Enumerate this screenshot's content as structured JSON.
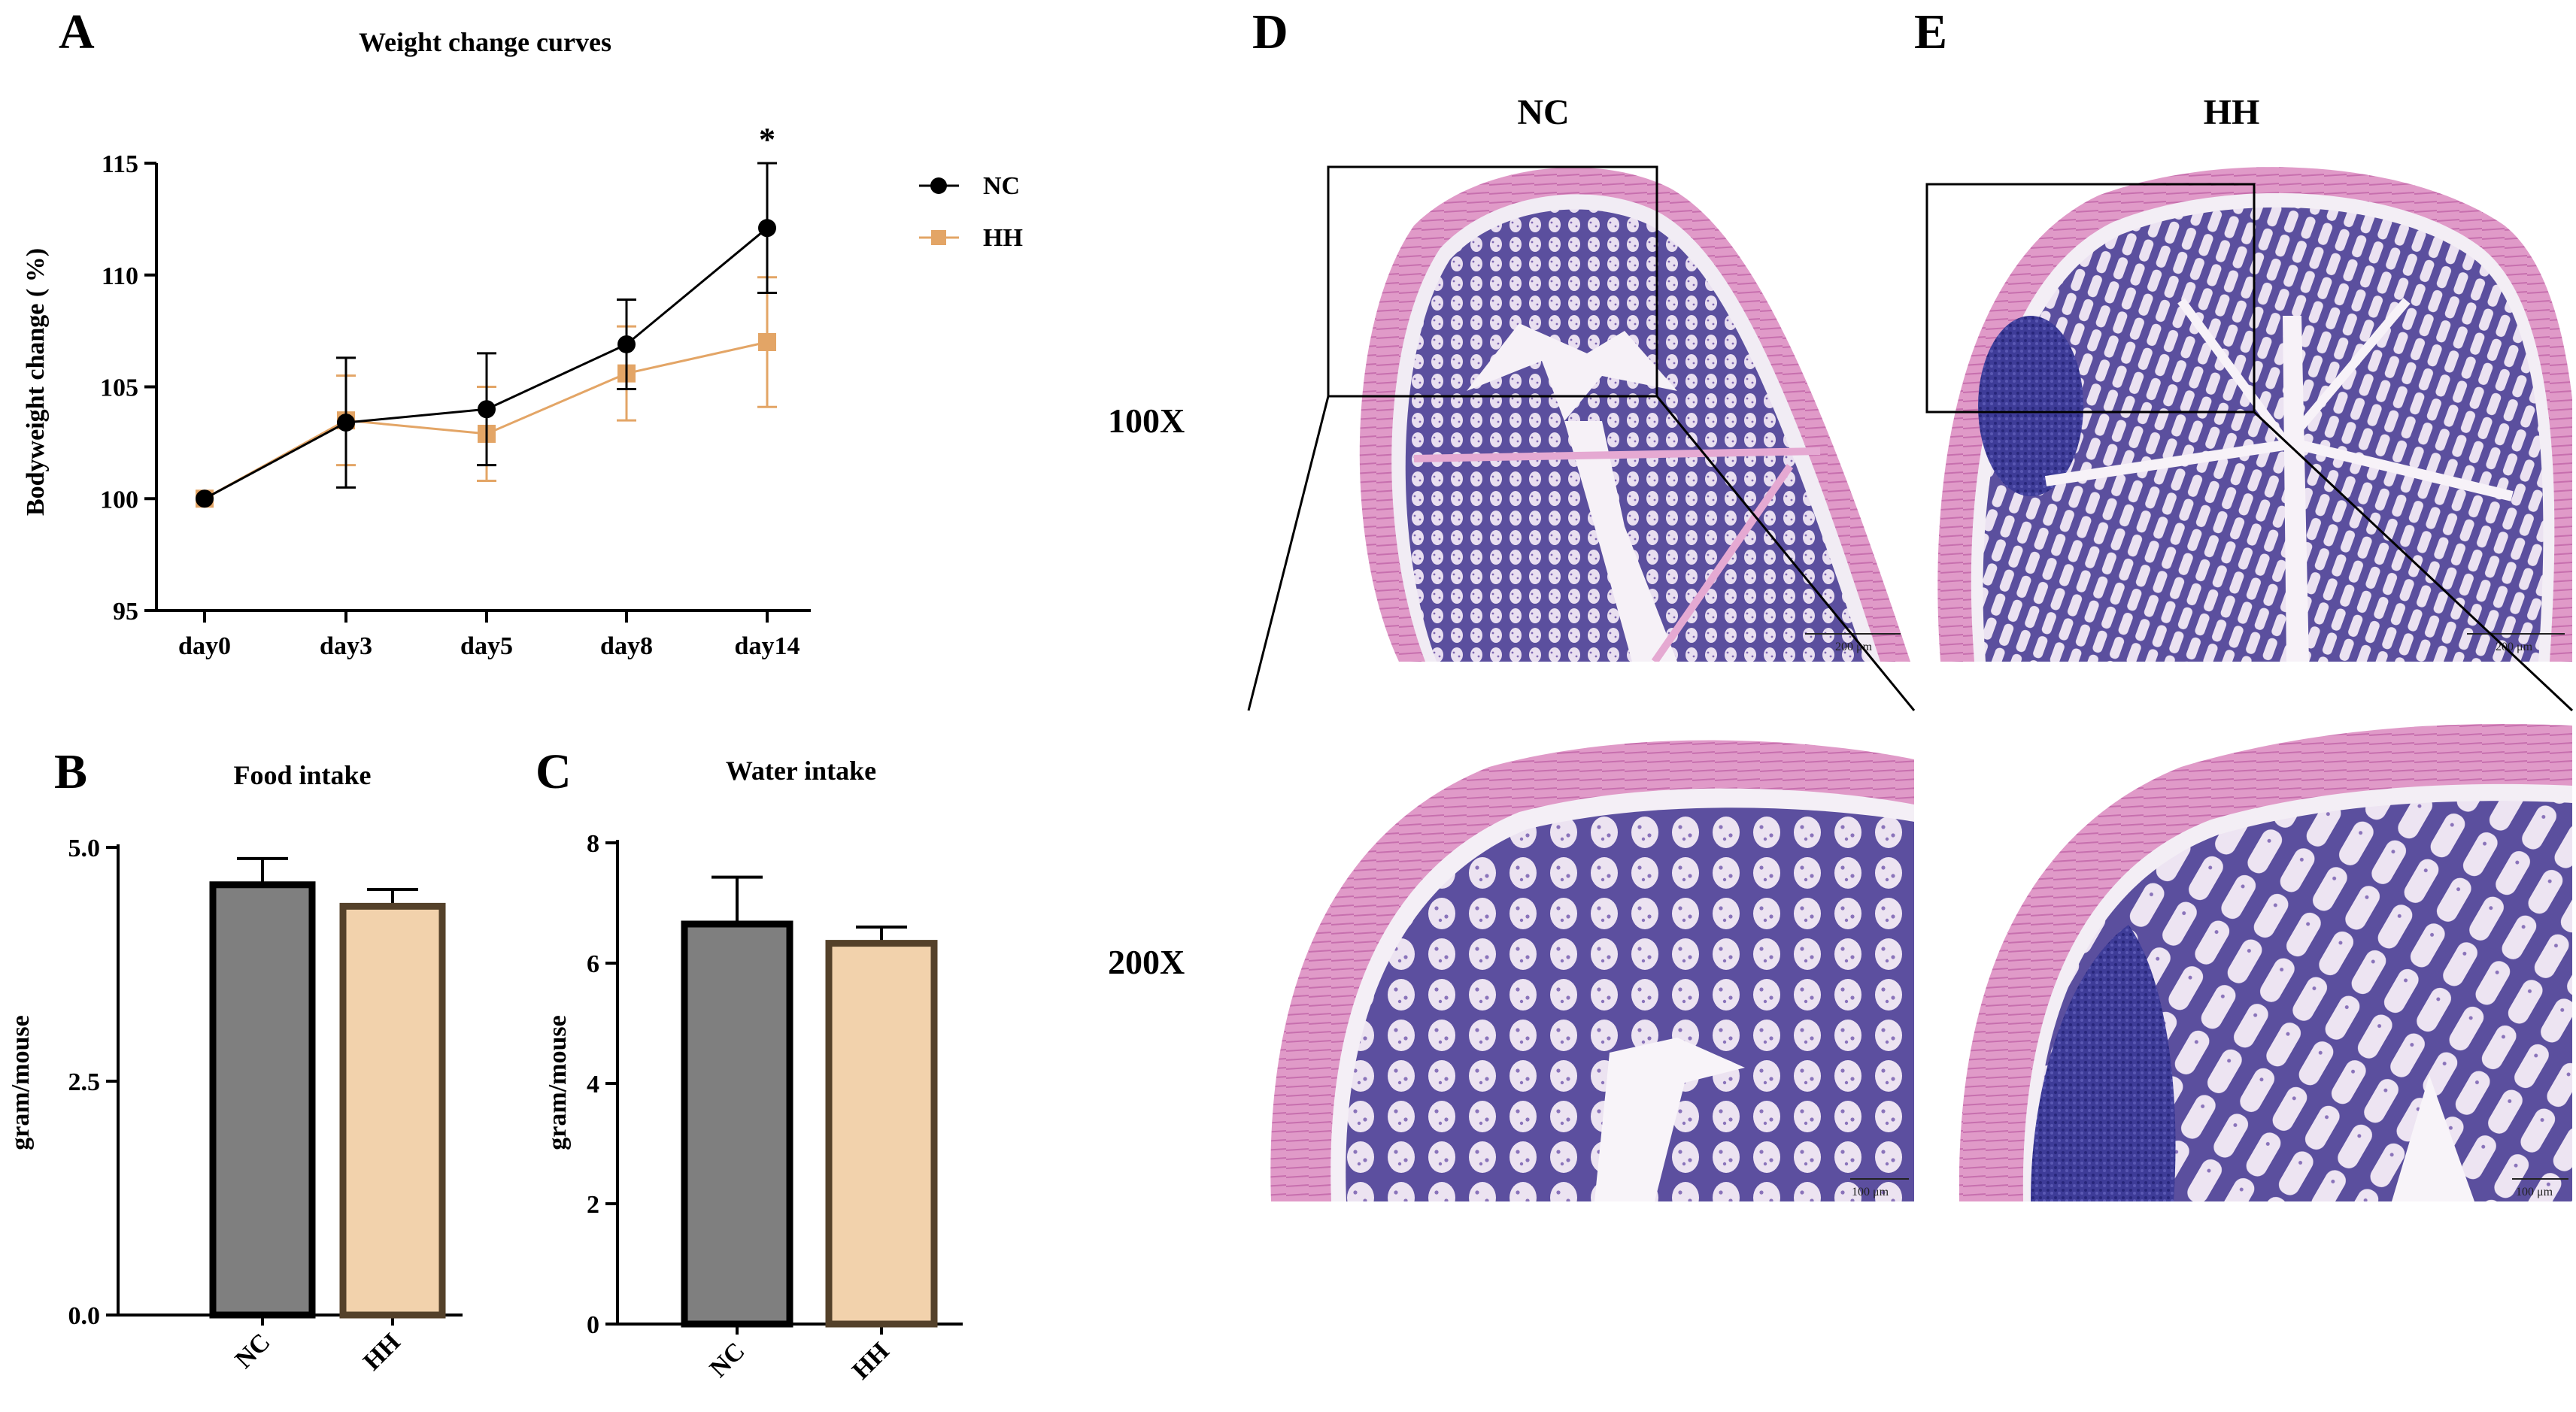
{
  "panels": {
    "A": "A",
    "B": "B",
    "C": "C",
    "D": "D",
    "E": "E"
  },
  "chart_data": [
    {
      "panel": "A",
      "type": "line",
      "title": "Weight change curves",
      "xlabel": "",
      "ylabel": "Bodyweight change ( %)",
      "categories": [
        "day0",
        "day3",
        "day5",
        "day8",
        "day14"
      ],
      "ylim": [
        95,
        115
      ],
      "yticks": [
        95,
        100,
        105,
        110,
        115
      ],
      "series": [
        {
          "name": "NC",
          "color": "#000000",
          "marker": "circle",
          "values": [
            100,
            103.4,
            104.0,
            106.9,
            112.1
          ],
          "errors": [
            0.2,
            2.9,
            2.5,
            2.0,
            2.9
          ]
        },
        {
          "name": "HH",
          "color": "#E3A566",
          "marker": "square",
          "values": [
            100,
            103.5,
            102.9,
            105.6,
            107.0
          ],
          "errors": [
            0.2,
            2.0,
            2.1,
            2.1,
            2.9
          ]
        }
      ],
      "annotations": [
        {
          "category": "day14",
          "text": "*"
        }
      ],
      "legend": "top-right",
      "grid": false
    },
    {
      "panel": "B",
      "type": "bar",
      "title": "Food intake",
      "xlabel": "",
      "ylabel": "gram/mouse",
      "categories": [
        "NC",
        "HH"
      ],
      "values": [
        4.6,
        4.37
      ],
      "errors": [
        0.28,
        0.18
      ],
      "ylim": [
        0,
        5
      ],
      "yticks": [
        0.0,
        2.5,
        5.0
      ],
      "yticklabels": [
        "0.0",
        "2.5",
        "5.0"
      ],
      "colors": [
        "#7f7f7f",
        "#f2d2ac"
      ],
      "edgecolors": [
        "#000000",
        "#54412a"
      ],
      "grid": false
    },
    {
      "panel": "C",
      "type": "bar",
      "title": "Water intake",
      "xlabel": "",
      "ylabel": "gram/mouse",
      "categories": [
        "NC",
        "HH"
      ],
      "values": [
        6.65,
        6.33
      ],
      "errors": [
        0.78,
        0.27
      ],
      "ylim": [
        0,
        8
      ],
      "yticks": [
        0,
        2,
        4,
        6,
        8
      ],
      "yticklabels": [
        "0",
        "2",
        "4",
        "6",
        "8"
      ],
      "colors": [
        "#7f7f7f",
        "#f2d2ac"
      ],
      "edgecolors": [
        "#000000",
        "#54412a"
      ],
      "grid": false
    }
  ],
  "histology": {
    "column_labels": [
      "NC",
      "HH"
    ],
    "row_labels": [
      "100X",
      "200X"
    ],
    "scale_bars": [
      "200 μm",
      "200 μm",
      "100 μm",
      "100 μm"
    ]
  },
  "colors": {
    "nc": "#000000",
    "hh": "#E3A566",
    "tissue_pink": "#d98ac0",
    "crypt_purple": "#5a4fa0",
    "mucus_white": "#efe8f2"
  }
}
